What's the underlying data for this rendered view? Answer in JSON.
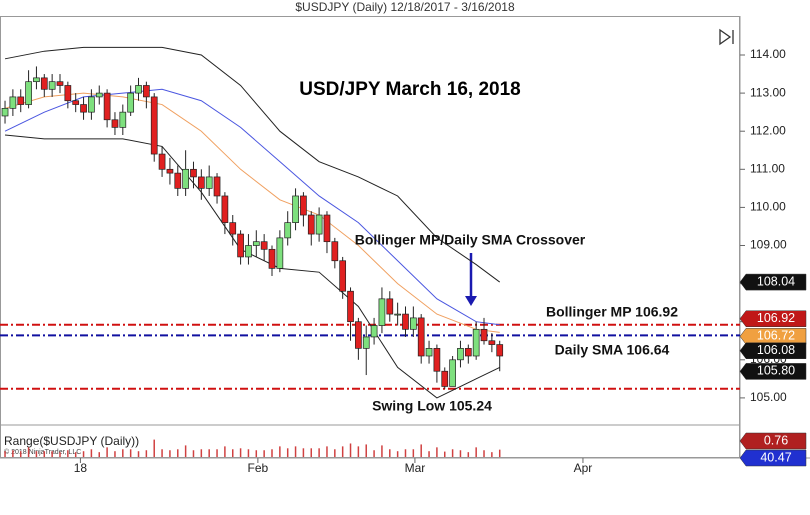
{
  "header": {
    "title": "$USDJPY (Daily)  12/18/2017 - 3/16/2018",
    "copyright": "© 2018 NinjaTrader, LLC"
  },
  "chart_data": [
    {
      "type": "candlestick",
      "title": "USD/JPY March 16, 2018",
      "x": [
        0,
        1,
        2,
        3,
        4,
        5,
        6,
        7,
        8,
        9,
        10,
        11,
        12,
        13,
        14,
        15,
        16,
        17,
        18,
        19,
        20,
        21,
        22,
        23,
        24,
        25,
        26,
        27,
        28,
        29,
        30,
        31,
        32,
        33,
        34,
        35,
        36,
        37,
        38,
        39,
        40,
        41,
        42,
        43,
        44,
        45,
        46,
        47,
        48,
        49,
        50,
        51,
        52,
        53,
        54,
        55,
        56,
        57,
        58,
        59,
        60,
        61,
        62,
        63
      ],
      "open": [
        112.4,
        112.6,
        112.9,
        112.7,
        113.3,
        113.4,
        113.1,
        113.3,
        113.2,
        112.8,
        112.7,
        112.5,
        112.9,
        113.0,
        112.3,
        112.1,
        112.5,
        113.0,
        113.2,
        112.9,
        111.4,
        111.0,
        110.9,
        110.5,
        111.0,
        110.8,
        110.5,
        110.8,
        110.3,
        109.6,
        109.3,
        108.7,
        109.0,
        109.1,
        108.9,
        108.4,
        109.2,
        109.6,
        110.3,
        109.8,
        109.3,
        109.8,
        109.1,
        108.6,
        107.8,
        107.0,
        106.3,
        106.6,
        106.9,
        107.6,
        107.2,
        107.2,
        106.8,
        107.1,
        106.1,
        106.3,
        105.7,
        105.3,
        106.0,
        106.3,
        106.1,
        106.8,
        106.5,
        106.4
      ],
      "high": [
        112.8,
        113.1,
        113.1,
        113.6,
        113.7,
        113.5,
        113.5,
        113.5,
        113.3,
        113.0,
        112.9,
        113.1,
        113.2,
        113.1,
        112.5,
        112.7,
        113.2,
        113.4,
        113.3,
        113.0,
        111.6,
        111.3,
        111.1,
        111.5,
        111.2,
        111.0,
        111.1,
        110.9,
        110.4,
        109.8,
        109.4,
        109.3,
        109.4,
        109.3,
        109.0,
        109.4,
        109.9,
        110.5,
        110.4,
        109.9,
        110.0,
        109.9,
        109.2,
        108.7,
        107.9,
        107.1,
        106.9,
        107.1,
        107.9,
        107.8,
        107.5,
        107.4,
        107.4,
        107.2,
        106.5,
        106.4,
        105.8,
        106.1,
        106.5,
        106.4,
        107.0,
        107.1,
        106.7,
        106.5
      ],
      "low": [
        112.2,
        112.4,
        112.5,
        112.6,
        113.1,
        112.9,
        112.9,
        113.0,
        112.6,
        112.5,
        112.3,
        112.3,
        112.7,
        112.1,
        111.9,
        111.9,
        112.4,
        112.8,
        112.6,
        111.2,
        110.8,
        110.6,
        110.3,
        110.3,
        110.5,
        110.2,
        110.3,
        110.1,
        109.3,
        109.0,
        108.5,
        108.5,
        108.7,
        108.6,
        108.2,
        108.3,
        109.0,
        109.4,
        109.5,
        109.0,
        109.1,
        108.8,
        108.4,
        107.6,
        106.5,
        106.0,
        105.6,
        106.4,
        106.7,
        107.0,
        106.9,
        106.6,
        106.6,
        105.9,
        105.9,
        105.4,
        105.24,
        105.3,
        105.8,
        105.9,
        106.0,
        106.4,
        106.2,
        105.7
      ],
      "close": [
        112.6,
        112.9,
        112.7,
        113.3,
        113.4,
        113.1,
        113.3,
        113.2,
        112.8,
        112.7,
        112.5,
        112.9,
        113.0,
        112.3,
        112.1,
        112.5,
        113.0,
        113.2,
        112.9,
        111.4,
        111.0,
        110.9,
        110.5,
        111.0,
        110.8,
        110.5,
        110.8,
        110.3,
        109.6,
        109.3,
        108.7,
        109.0,
        109.1,
        108.9,
        108.4,
        109.2,
        109.6,
        110.3,
        109.8,
        109.3,
        109.8,
        109.1,
        108.6,
        107.8,
        107.0,
        106.3,
        106.6,
        106.9,
        107.6,
        107.2,
        107.2,
        106.8,
        107.1,
        106.1,
        106.3,
        105.7,
        105.3,
        106.0,
        106.3,
        106.1,
        106.8,
        106.5,
        106.4,
        106.1
      ],
      "up_color": "#7ee07e",
      "down_color": "#e02020",
      "lines": [
        {
          "color": "#f0a060",
          "x": [
            0,
            5,
            10,
            15,
            20,
            25,
            30,
            35,
            40,
            45,
            50,
            55,
            60,
            63
          ],
          "values": [
            112.6,
            112.9,
            113.0,
            112.9,
            112.7,
            112.0,
            111.0,
            110.2,
            109.8,
            109.0,
            108.0,
            107.2,
            106.8,
            106.72
          ]
        },
        {
          "color": "#4a56e0",
          "x": [
            0,
            5,
            10,
            15,
            20,
            25,
            30,
            35,
            40,
            45,
            50,
            55,
            60,
            63
          ],
          "values": [
            112.0,
            112.5,
            112.9,
            113.0,
            113.1,
            112.8,
            112.1,
            111.2,
            110.3,
            109.6,
            108.6,
            107.6,
            107.0,
            106.92
          ]
        },
        {
          "color": "#222222",
          "x": [
            0,
            5,
            10,
            15,
            20,
            25,
            30,
            35,
            40,
            45,
            50,
            55,
            60,
            63
          ],
          "values": [
            113.9,
            114.1,
            114.2,
            114.2,
            114.2,
            114.0,
            113.2,
            112.0,
            111.2,
            110.8,
            110.3,
            109.2,
            108.5,
            108.04
          ]
        },
        {
          "color": "#222222",
          "x": [
            0,
            5,
            10,
            15,
            20,
            25,
            30,
            35,
            40,
            45,
            50,
            55,
            60,
            63
          ],
          "values": [
            111.9,
            111.8,
            111.8,
            111.8,
            111.6,
            110.4,
            108.9,
            108.4,
            108.3,
            107.4,
            105.8,
            105.0,
            105.5,
            105.8
          ]
        }
      ],
      "levels": [
        {
          "value": 106.92,
          "color": "#d01010"
        },
        {
          "value": 106.64,
          "color": "#1010a0"
        },
        {
          "value": 105.24,
          "color": "#d01010"
        }
      ],
      "annotations": [
        "Bollinger MP/Daily SMA Crossover",
        "Bollinger MP 106.92",
        "Daily SMA 106.64",
        "Swing Low 105.24"
      ],
      "price_tags": [
        {
          "value": 108.04,
          "label": "108.04",
          "color": "#111111"
        },
        {
          "value": 106.92,
          "label": "106.92",
          "color": "#c01818"
        },
        {
          "value": 106.72,
          "label": "106.72",
          "color": "#f0a040"
        },
        {
          "value": 106.08,
          "label": "106.08",
          "color": "#111111"
        },
        {
          "value": 105.8,
          "label": "105.80",
          "color": "#111111"
        }
      ],
      "xlim": [
        -0.64,
        93.6
      ],
      "xticks": [
        {
          "value": 9.6,
          "label": "18"
        },
        {
          "value": 32.2,
          "label": "Feb"
        },
        {
          "value": 52.2,
          "label": "Mar"
        },
        {
          "value": 73.6,
          "label": "Apr"
        }
      ],
      "ylim": [
        104.42,
        115.05
      ],
      "yticks": [
        {
          "value": 105,
          "label": "105.00"
        },
        {
          "value": 106,
          "label": "106.00"
        },
        {
          "value": 107,
          "label": "107.00"
        },
        {
          "value": 108,
          "label": "108.00"
        },
        {
          "value": 109,
          "label": "109.00"
        },
        {
          "value": 110,
          "label": "110.00"
        },
        {
          "value": 111,
          "label": "111.00"
        },
        {
          "value": 112,
          "label": "112.00"
        },
        {
          "value": 113,
          "label": "113.00"
        },
        {
          "value": 114,
          "label": "114.00"
        }
      ]
    },
    {
      "type": "bar",
      "title": "Range($USDJPY (Daily))",
      "color": "#d04040",
      "x": [
        0,
        1,
        2,
        3,
        4,
        5,
        6,
        7,
        8,
        9,
        10,
        11,
        12,
        13,
        14,
        15,
        16,
        17,
        18,
        19,
        20,
        21,
        22,
        23,
        24,
        25,
        26,
        27,
        28,
        29,
        30,
        31,
        32,
        33,
        34,
        35,
        36,
        37,
        38,
        39,
        40,
        41,
        42,
        43,
        44,
        45,
        46,
        47,
        48,
        49,
        50,
        51,
        52,
        53,
        54,
        55,
        56,
        57,
        58,
        59,
        60,
        61,
        62,
        63
      ],
      "values": [
        0.6,
        0.7,
        0.6,
        1.0,
        0.6,
        0.6,
        0.6,
        0.5,
        0.7,
        0.5,
        0.6,
        0.8,
        0.5,
        1.0,
        0.6,
        0.8,
        0.8,
        0.6,
        0.7,
        1.8,
        0.8,
        0.7,
        0.8,
        1.2,
        0.7,
        0.8,
        0.8,
        0.8,
        1.1,
        0.8,
        0.9,
        0.8,
        0.7,
        0.7,
        0.8,
        1.1,
        0.9,
        1.1,
        0.9,
        0.9,
        0.9,
        1.1,
        0.8,
        1.1,
        1.4,
        1.1,
        1.3,
        0.7,
        1.2,
        0.8,
        0.6,
        0.8,
        0.8,
        1.3,
        0.6,
        1.0,
        0.56,
        0.8,
        0.7,
        0.5,
        1.0,
        0.7,
        0.5,
        0.76
      ],
      "ylim": [
        0,
        3
      ],
      "price_tags": [
        {
          "value": 0.76,
          "label": "0.76",
          "color": "#b02020"
        },
        {
          "value": 40.47,
          "label": "40.47",
          "color": "#2030d0"
        }
      ]
    }
  ]
}
